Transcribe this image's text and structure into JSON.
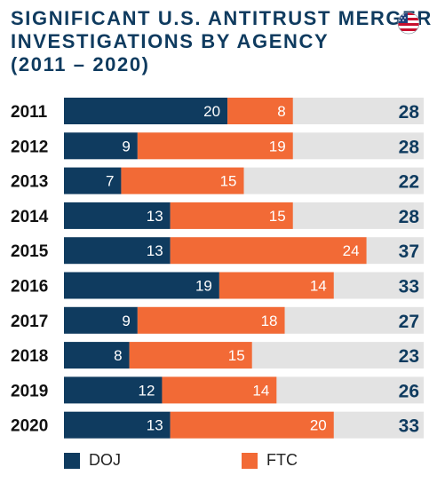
{
  "title_lines": [
    "SIGNIFICANT U.S. ANTITRUST MERGER",
    "INVESTIGATIONS BY AGENCY",
    "(2011 – 2020)"
  ],
  "flag_icon": "us-flag-circle-icon",
  "colors": {
    "doj": "#0f3b5f",
    "ftc": "#f26a36",
    "track": "#e3e3e3",
    "title": "#0f3b5f"
  },
  "chart_data": {
    "type": "bar",
    "orientation": "horizontal",
    "stacked": true,
    "title": "SIGNIFICANT U.S. ANTITRUST MERGER INVESTIGATIONS BY AGENCY (2011 – 2020)",
    "categories": [
      "2011",
      "2012",
      "2013",
      "2014",
      "2015",
      "2016",
      "2017",
      "2018",
      "2019",
      "2020"
    ],
    "series": [
      {
        "name": "DOJ",
        "values": [
          20,
          9,
          7,
          13,
          13,
          19,
          9,
          8,
          12,
          13
        ]
      },
      {
        "name": "FTC",
        "values": [
          8,
          19,
          15,
          15,
          24,
          14,
          18,
          15,
          14,
          20
        ]
      }
    ],
    "totals": [
      28,
      28,
      22,
      28,
      37,
      33,
      27,
      23,
      26,
      33
    ],
    "xlim": [
      0,
      44
    ],
    "grid": false,
    "legend_position": "bottom-left"
  },
  "legend": [
    {
      "label": "DOJ"
    },
    {
      "label": "FTC"
    }
  ]
}
